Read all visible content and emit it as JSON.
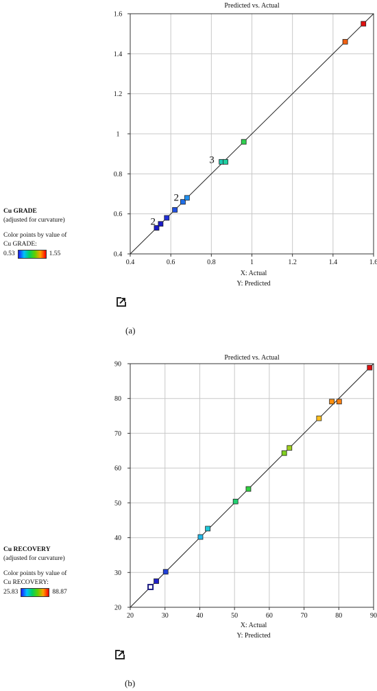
{
  "chart_data": [
    {
      "type": "scatter",
      "title": "Predicted vs. Actual",
      "xlabel": "X: Actual",
      "ylabel": "Y: Predicted",
      "xlim": [
        0.4,
        1.6
      ],
      "ylim": [
        0.4,
        1.6
      ],
      "xticks": [
        "0.4",
        "0.6",
        "0.8",
        "1",
        "1.2",
        "1.4",
        "1.6"
      ],
      "yticks": [
        "0.4",
        "0.6",
        "0.8",
        "1",
        "1.2",
        "1.4",
        "1.6"
      ],
      "grid": true,
      "reference_line": [
        [
          0.4,
          0.4
        ],
        [
          1.6,
          1.6
        ]
      ],
      "points": [
        {
          "x": 0.53,
          "y": 0.53,
          "color": "#1c1cc8"
        },
        {
          "x": 0.55,
          "y": 0.55,
          "color": "#1c1cc8"
        },
        {
          "x": 0.58,
          "y": 0.58,
          "color": "#2030d8"
        },
        {
          "x": 0.62,
          "y": 0.62,
          "color": "#2050e0"
        },
        {
          "x": 0.66,
          "y": 0.66,
          "color": "#2070e8"
        },
        {
          "x": 0.68,
          "y": 0.68,
          "color": "#2090f0"
        },
        {
          "x": 0.85,
          "y": 0.86,
          "color": "#20c8b0"
        },
        {
          "x": 0.87,
          "y": 0.86,
          "color": "#20d0a0"
        },
        {
          "x": 0.96,
          "y": 0.96,
          "color": "#30d050"
        },
        {
          "x": 1.46,
          "y": 1.46,
          "color": "#f06010"
        },
        {
          "x": 1.55,
          "y": 1.55,
          "color": "#e01010"
        }
      ],
      "annotations": [
        {
          "text": "2",
          "x": 0.525,
          "y": 0.545
        },
        {
          "text": "2",
          "x": 0.64,
          "y": 0.665
        },
        {
          "text": "3",
          "x": 0.815,
          "y": 0.855
        }
      ],
      "legend": {
        "variable": "Cu GRADE",
        "subtitle": "(adjusted for curvature)",
        "color_note_1": "Color points by value of",
        "color_note_2": "Cu GRADE:",
        "min": "0.53",
        "max": "1.55"
      },
      "caption": "(a)"
    },
    {
      "type": "scatter",
      "title": "Predicted vs. Actual",
      "xlabel": "X: Actual",
      "ylabel": "Y: Predicted",
      "xlim": [
        20,
        90
      ],
      "ylim": [
        20,
        90
      ],
      "xticks": [
        "20",
        "30",
        "40",
        "50",
        "60",
        "70",
        "80",
        "90"
      ],
      "yticks": [
        "20",
        "30",
        "40",
        "50",
        "60",
        "70",
        "80",
        "90"
      ],
      "grid": true,
      "reference_line": [
        [
          20,
          20
        ],
        [
          90,
          90
        ]
      ],
      "points": [
        {
          "x": 25.83,
          "y": 25.83,
          "color": "#ffffff",
          "border": "#1c1c80"
        },
        {
          "x": 27.5,
          "y": 27.5,
          "color": "#2020c8"
        },
        {
          "x": 30.2,
          "y": 30.2,
          "color": "#2040d8"
        },
        {
          "x": 40.2,
          "y": 40.2,
          "color": "#20b8e8"
        },
        {
          "x": 42.3,
          "y": 42.6,
          "color": "#20c8d8"
        },
        {
          "x": 50.3,
          "y": 50.4,
          "color": "#20d070"
        },
        {
          "x": 54.0,
          "y": 54.0,
          "color": "#30d040"
        },
        {
          "x": 64.3,
          "y": 64.3,
          "color": "#80d020"
        },
        {
          "x": 65.8,
          "y": 65.8,
          "color": "#a0d020"
        },
        {
          "x": 74.3,
          "y": 74.3,
          "color": "#ffc020"
        },
        {
          "x": 78.0,
          "y": 79.1,
          "color": "#ff9010"
        },
        {
          "x": 80.1,
          "y": 79.1,
          "color": "#ff8010"
        },
        {
          "x": 88.87,
          "y": 88.87,
          "color": "#e01010"
        }
      ],
      "annotations": [],
      "legend": {
        "variable": "Cu RECOVERY",
        "subtitle": "(adjusted for curvature)",
        "color_note_1": "Color points by value of",
        "color_note_2": "Cu RECOVERY:",
        "min": "25.83",
        "max": "88.87"
      },
      "caption": "(b)"
    }
  ],
  "icons": {
    "external_link": "external-link-icon"
  }
}
